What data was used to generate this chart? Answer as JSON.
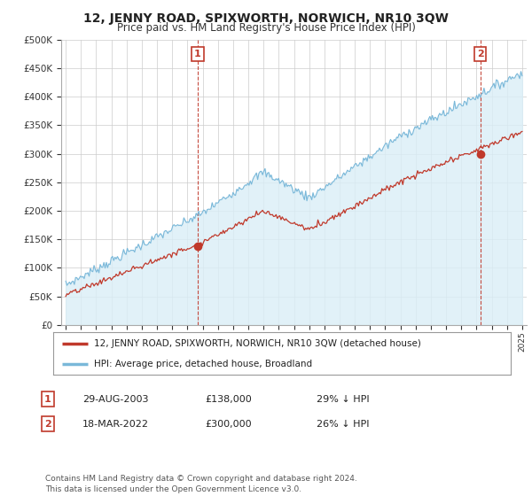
{
  "title": "12, JENNY ROAD, SPIXWORTH, NORWICH, NR10 3QW",
  "subtitle": "Price paid vs. HM Land Registry's House Price Index (HPI)",
  "title_fontsize": 10,
  "subtitle_fontsize": 8.5,
  "hpi_color": "#7ab8d9",
  "hpi_fill_color": "#daeef7",
  "price_color": "#c0392b",
  "vline_color": "#c0392b",
  "ylim": [
    0,
    500000
  ],
  "yticks": [
    0,
    50000,
    100000,
    150000,
    200000,
    250000,
    300000,
    350000,
    400000,
    450000,
    500000
  ],
  "ytick_labels": [
    "£0",
    "£50K",
    "£100K",
    "£150K",
    "£200K",
    "£250K",
    "£300K",
    "£350K",
    "£400K",
    "£450K",
    "£500K"
  ],
  "sale1_x": 8.67,
  "sale1_price": 138000,
  "sale1_label": "1",
  "sale2_x": 27.25,
  "sale2_price": 300000,
  "sale2_label": "2",
  "xtick_start": 1995,
  "xtick_end": 2025,
  "legend_line1": "12, JENNY ROAD, SPIXWORTH, NORWICH, NR10 3QW (detached house)",
  "legend_line2": "HPI: Average price, detached house, Broadland",
  "table_row1_num": "1",
  "table_row1_date": "29-AUG-2003",
  "table_row1_price": "£138,000",
  "table_row1_hpi": "29% ↓ HPI",
  "table_row2_num": "2",
  "table_row2_date": "18-MAR-2022",
  "table_row2_price": "£300,000",
  "table_row2_hpi": "26% ↓ HPI",
  "footnote": "Contains HM Land Registry data © Crown copyright and database right 2024.\nThis data is licensed under the Open Government Licence v3.0.",
  "background_color": "#ffffff",
  "grid_color": "#cccccc"
}
